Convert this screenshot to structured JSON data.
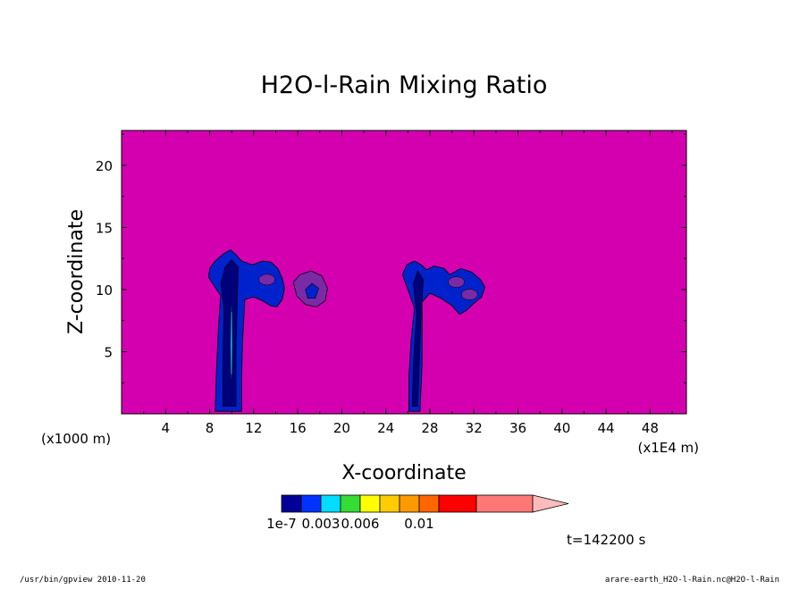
{
  "chart_data": {
    "type": "heatmap",
    "title": "H2O-l-Rain Mixing Ratio",
    "xlabel": "X-coordinate",
    "ylabel": "Z-coordinate",
    "x_unit_left": "(x1000 m)",
    "x_unit_right": "(x1E4 m)",
    "xlim": [
      0,
      51.3
    ],
    "ylim": [
      0,
      22.8
    ],
    "x_ticks": [
      4,
      8,
      12,
      16,
      20,
      24,
      28,
      32,
      36,
      40,
      44,
      48
    ],
    "x_tick_labels": [
      "4",
      "8",
      "12",
      "16",
      "20",
      "24",
      "28",
      "32",
      "36",
      "40",
      "44",
      "48"
    ],
    "y_ticks": [
      5,
      10,
      15,
      20
    ],
    "y_tick_labels": [
      "5",
      "10",
      "15",
      "20"
    ],
    "background_color": "#d400b0",
    "colorbar": {
      "colors": [
        "#000099",
        "#0033ff",
        "#00ddff",
        "#33dd33",
        "#ffff00",
        "#ffcc00",
        "#ff9900",
        "#ff6600",
        "#ff0000",
        "#ff7777",
        "#ffbbbb"
      ],
      "labels": [
        {
          "text": "1e-7",
          "after_box": 0
        },
        {
          "text": "0.003",
          "after_box": 2
        },
        {
          "text": "0.006",
          "after_box": 4
        },
        {
          "text": "0.01",
          "after_box": 7
        }
      ]
    },
    "cells": [
      {
        "name": "cell-1",
        "outer": [
          [
            8.5,
            0.2
          ],
          [
            8.6,
            3
          ],
          [
            8.8,
            7
          ],
          [
            9.0,
            9.5
          ],
          [
            8.4,
            10.3
          ],
          [
            7.9,
            11
          ],
          [
            8.0,
            11.7
          ],
          [
            8.5,
            12.3
          ],
          [
            9.3,
            12.9
          ],
          [
            9.9,
            13.2
          ],
          [
            10.4,
            12.8
          ],
          [
            10.9,
            12.3
          ],
          [
            11.9,
            12.0
          ],
          [
            12.8,
            12.3
          ],
          [
            13.6,
            12.2
          ],
          [
            14.2,
            11.7
          ],
          [
            14.6,
            10.9
          ],
          [
            14.8,
            10.1
          ],
          [
            14.6,
            9.2
          ],
          [
            14.1,
            8.6
          ],
          [
            13.5,
            8.7
          ],
          [
            12.8,
            9.1
          ],
          [
            12.0,
            9.4
          ],
          [
            11.2,
            9.2
          ],
          [
            11.0,
            6
          ],
          [
            10.9,
            3
          ],
          [
            10.9,
            0.2
          ]
        ],
        "inner": [
          [
            9.2,
            0.6
          ],
          [
            9.2,
            4
          ],
          [
            9.3,
            8.5
          ],
          [
            9.0,
            10.5
          ],
          [
            9.4,
            11.8
          ],
          [
            10.0,
            12.4
          ],
          [
            10.6,
            11.8
          ],
          [
            10.5,
            9
          ],
          [
            10.4,
            5
          ],
          [
            10.4,
            0.6
          ]
        ],
        "core": [
          [
            9.9,
            2.8
          ],
          [
            9.85,
            5.5
          ],
          [
            9.9,
            8.6
          ],
          [
            10.05,
            8.9
          ],
          [
            10.1,
            5.5
          ],
          [
            10.05,
            2.8
          ]
        ],
        "cyan": [
          [
            9.94,
            3.2
          ],
          [
            9.93,
            5.6
          ],
          [
            9.96,
            8.2
          ],
          [
            10.02,
            8.2
          ],
          [
            10.03,
            5.6
          ],
          [
            10.01,
            3.2
          ]
        ]
      },
      {
        "name": "cell-2",
        "outer": [
          [
            26.1,
            0.2
          ],
          [
            26.1,
            3
          ],
          [
            26.3,
            6
          ],
          [
            26.6,
            8.5
          ],
          [
            26.0,
            10
          ],
          [
            25.5,
            11.2
          ],
          [
            25.9,
            12.0
          ],
          [
            26.6,
            12.3
          ],
          [
            27.2,
            12.0
          ],
          [
            27.7,
            11.6
          ],
          [
            28.4,
            11.9
          ],
          [
            29.3,
            11.7
          ],
          [
            29.8,
            11.2
          ],
          [
            30.8,
            11.7
          ],
          [
            31.8,
            11.4
          ],
          [
            32.6,
            10.8
          ],
          [
            33.0,
            10.2
          ],
          [
            32.7,
            9.4
          ],
          [
            32.0,
            8.9
          ],
          [
            31.3,
            8.3
          ],
          [
            30.7,
            8.0
          ],
          [
            30.0,
            8.7
          ],
          [
            29.0,
            9.3
          ],
          [
            28.0,
            9.7
          ],
          [
            27.3,
            9.0
          ],
          [
            27.3,
            4
          ],
          [
            27.1,
            0.2
          ]
        ],
        "inner": [
          [
            26.4,
            0.6
          ],
          [
            26.5,
            4
          ],
          [
            26.8,
            8
          ],
          [
            26.5,
            10.5
          ],
          [
            26.9,
            11.5
          ],
          [
            27.4,
            10.8
          ],
          [
            27.2,
            8
          ],
          [
            26.9,
            0.6
          ]
        ]
      },
      {
        "name": "cell-3",
        "outer": [
          [
            15.6,
            10.6
          ],
          [
            16.2,
            11.2
          ],
          [
            17.2,
            11.5
          ],
          [
            18.2,
            11.1
          ],
          [
            18.7,
            10.1
          ],
          [
            18.5,
            9.1
          ],
          [
            17.7,
            8.6
          ],
          [
            16.7,
            8.8
          ],
          [
            15.9,
            9.5
          ]
        ],
        "inner": [
          [
            16.7,
            10.0
          ],
          [
            17.3,
            10.5
          ],
          [
            17.9,
            10.1
          ],
          [
            17.6,
            9.3
          ],
          [
            16.9,
            9.3
          ]
        ]
      }
    ],
    "time_label": "t=142200 s"
  },
  "footer": {
    "left": "/usr/bin/gpview  2010-11-20",
    "right": "arare-earth_H2O-l-Rain.nc@H2O-l-Rain"
  },
  "colors": {
    "cell_outer": "#7a2aa6",
    "cell_mid": "#0022cc",
    "cell_inner": "#00007a",
    "cyan": "#22cccc"
  }
}
